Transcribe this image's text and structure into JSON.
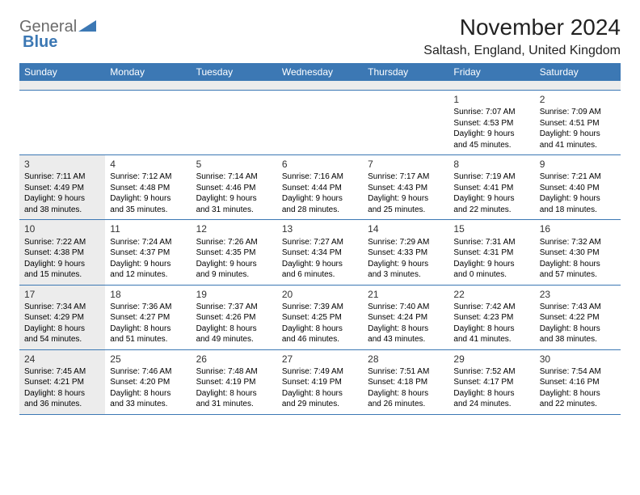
{
  "logo": {
    "text_grey": "General",
    "text_blue": "Blue"
  },
  "title": {
    "month": "November 2024",
    "location": "Saltash, England, United Kingdom"
  },
  "colors": {
    "header_bg": "#3c78b4",
    "header_text": "#ffffff",
    "shaded_bg": "#ececec",
    "row_border": "#3c78b4",
    "body_text": "#000000",
    "logo_grey": "#6b6b6b",
    "logo_blue": "#3c78b4"
  },
  "layout": {
    "columns": 7,
    "rows": 5,
    "font_family": "Arial",
    "daynum_fontsize": 12,
    "detail_fontsize": 10,
    "header_fontsize": 12,
    "title_fontsize": 28,
    "location_fontsize": 16
  },
  "day_names": [
    "Sunday",
    "Monday",
    "Tuesday",
    "Wednesday",
    "Thursday",
    "Friday",
    "Saturday"
  ],
  "weeks": [
    [
      {
        "empty": true
      },
      {
        "empty": true
      },
      {
        "empty": true
      },
      {
        "empty": true
      },
      {
        "empty": true
      },
      {
        "day": "1",
        "sunrise": "Sunrise: 7:07 AM",
        "sunset": "Sunset: 4:53 PM",
        "daylight1": "Daylight: 9 hours",
        "daylight2": "and 45 minutes."
      },
      {
        "day": "2",
        "sunrise": "Sunrise: 7:09 AM",
        "sunset": "Sunset: 4:51 PM",
        "daylight1": "Daylight: 9 hours",
        "daylight2": "and 41 minutes."
      }
    ],
    [
      {
        "day": "3",
        "shaded": true,
        "sunrise": "Sunrise: 7:11 AM",
        "sunset": "Sunset: 4:49 PM",
        "daylight1": "Daylight: 9 hours",
        "daylight2": "and 38 minutes."
      },
      {
        "day": "4",
        "sunrise": "Sunrise: 7:12 AM",
        "sunset": "Sunset: 4:48 PM",
        "daylight1": "Daylight: 9 hours",
        "daylight2": "and 35 minutes."
      },
      {
        "day": "5",
        "sunrise": "Sunrise: 7:14 AM",
        "sunset": "Sunset: 4:46 PM",
        "daylight1": "Daylight: 9 hours",
        "daylight2": "and 31 minutes."
      },
      {
        "day": "6",
        "sunrise": "Sunrise: 7:16 AM",
        "sunset": "Sunset: 4:44 PM",
        "daylight1": "Daylight: 9 hours",
        "daylight2": "and 28 minutes."
      },
      {
        "day": "7",
        "sunrise": "Sunrise: 7:17 AM",
        "sunset": "Sunset: 4:43 PM",
        "daylight1": "Daylight: 9 hours",
        "daylight2": "and 25 minutes."
      },
      {
        "day": "8",
        "sunrise": "Sunrise: 7:19 AM",
        "sunset": "Sunset: 4:41 PM",
        "daylight1": "Daylight: 9 hours",
        "daylight2": "and 22 minutes."
      },
      {
        "day": "9",
        "sunrise": "Sunrise: 7:21 AM",
        "sunset": "Sunset: 4:40 PM",
        "daylight1": "Daylight: 9 hours",
        "daylight2": "and 18 minutes."
      }
    ],
    [
      {
        "day": "10",
        "shaded": true,
        "sunrise": "Sunrise: 7:22 AM",
        "sunset": "Sunset: 4:38 PM",
        "daylight1": "Daylight: 9 hours",
        "daylight2": "and 15 minutes."
      },
      {
        "day": "11",
        "sunrise": "Sunrise: 7:24 AM",
        "sunset": "Sunset: 4:37 PM",
        "daylight1": "Daylight: 9 hours",
        "daylight2": "and 12 minutes."
      },
      {
        "day": "12",
        "sunrise": "Sunrise: 7:26 AM",
        "sunset": "Sunset: 4:35 PM",
        "daylight1": "Daylight: 9 hours",
        "daylight2": "and 9 minutes."
      },
      {
        "day": "13",
        "sunrise": "Sunrise: 7:27 AM",
        "sunset": "Sunset: 4:34 PM",
        "daylight1": "Daylight: 9 hours",
        "daylight2": "and 6 minutes."
      },
      {
        "day": "14",
        "sunrise": "Sunrise: 7:29 AM",
        "sunset": "Sunset: 4:33 PM",
        "daylight1": "Daylight: 9 hours",
        "daylight2": "and 3 minutes."
      },
      {
        "day": "15",
        "sunrise": "Sunrise: 7:31 AM",
        "sunset": "Sunset: 4:31 PM",
        "daylight1": "Daylight: 9 hours",
        "daylight2": "and 0 minutes."
      },
      {
        "day": "16",
        "sunrise": "Sunrise: 7:32 AM",
        "sunset": "Sunset: 4:30 PM",
        "daylight1": "Daylight: 8 hours",
        "daylight2": "and 57 minutes."
      }
    ],
    [
      {
        "day": "17",
        "shaded": true,
        "sunrise": "Sunrise: 7:34 AM",
        "sunset": "Sunset: 4:29 PM",
        "daylight1": "Daylight: 8 hours",
        "daylight2": "and 54 minutes."
      },
      {
        "day": "18",
        "sunrise": "Sunrise: 7:36 AM",
        "sunset": "Sunset: 4:27 PM",
        "daylight1": "Daylight: 8 hours",
        "daylight2": "and 51 minutes."
      },
      {
        "day": "19",
        "sunrise": "Sunrise: 7:37 AM",
        "sunset": "Sunset: 4:26 PM",
        "daylight1": "Daylight: 8 hours",
        "daylight2": "and 49 minutes."
      },
      {
        "day": "20",
        "sunrise": "Sunrise: 7:39 AM",
        "sunset": "Sunset: 4:25 PM",
        "daylight1": "Daylight: 8 hours",
        "daylight2": "and 46 minutes."
      },
      {
        "day": "21",
        "sunrise": "Sunrise: 7:40 AM",
        "sunset": "Sunset: 4:24 PM",
        "daylight1": "Daylight: 8 hours",
        "daylight2": "and 43 minutes."
      },
      {
        "day": "22",
        "sunrise": "Sunrise: 7:42 AM",
        "sunset": "Sunset: 4:23 PM",
        "daylight1": "Daylight: 8 hours",
        "daylight2": "and 41 minutes."
      },
      {
        "day": "23",
        "sunrise": "Sunrise: 7:43 AM",
        "sunset": "Sunset: 4:22 PM",
        "daylight1": "Daylight: 8 hours",
        "daylight2": "and 38 minutes."
      }
    ],
    [
      {
        "day": "24",
        "shaded": true,
        "sunrise": "Sunrise: 7:45 AM",
        "sunset": "Sunset: 4:21 PM",
        "daylight1": "Daylight: 8 hours",
        "daylight2": "and 36 minutes."
      },
      {
        "day": "25",
        "sunrise": "Sunrise: 7:46 AM",
        "sunset": "Sunset: 4:20 PM",
        "daylight1": "Daylight: 8 hours",
        "daylight2": "and 33 minutes."
      },
      {
        "day": "26",
        "sunrise": "Sunrise: 7:48 AM",
        "sunset": "Sunset: 4:19 PM",
        "daylight1": "Daylight: 8 hours",
        "daylight2": "and 31 minutes."
      },
      {
        "day": "27",
        "sunrise": "Sunrise: 7:49 AM",
        "sunset": "Sunset: 4:19 PM",
        "daylight1": "Daylight: 8 hours",
        "daylight2": "and 29 minutes."
      },
      {
        "day": "28",
        "sunrise": "Sunrise: 7:51 AM",
        "sunset": "Sunset: 4:18 PM",
        "daylight1": "Daylight: 8 hours",
        "daylight2": "and 26 minutes."
      },
      {
        "day": "29",
        "sunrise": "Sunrise: 7:52 AM",
        "sunset": "Sunset: 4:17 PM",
        "daylight1": "Daylight: 8 hours",
        "daylight2": "and 24 minutes."
      },
      {
        "day": "30",
        "sunrise": "Sunrise: 7:54 AM",
        "sunset": "Sunset: 4:16 PM",
        "daylight1": "Daylight: 8 hours",
        "daylight2": "and 22 minutes."
      }
    ]
  ]
}
